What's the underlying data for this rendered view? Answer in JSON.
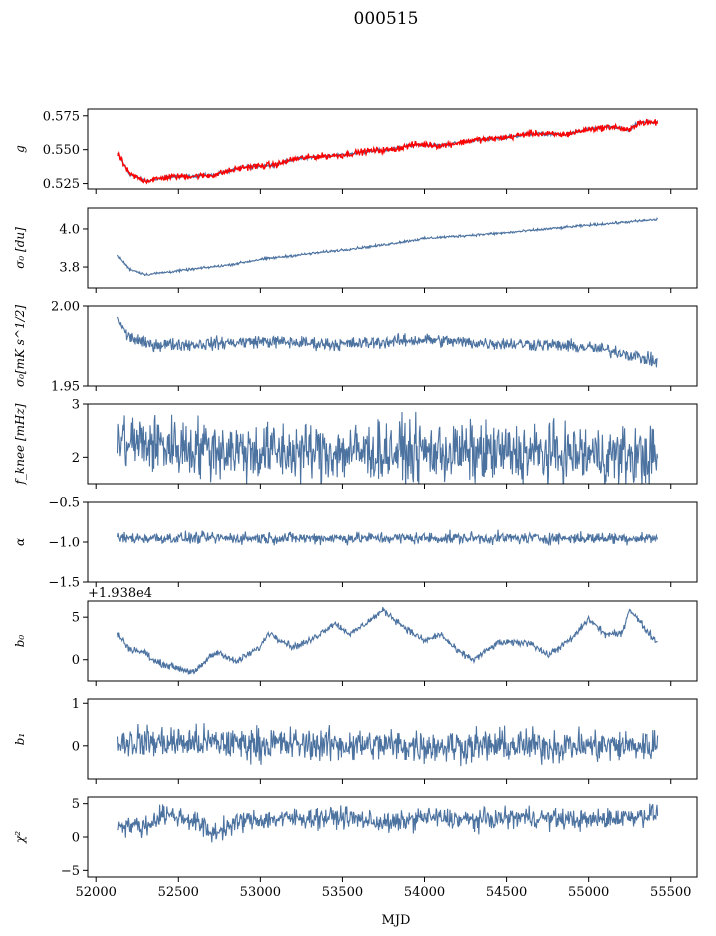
{
  "figure": {
    "title": "000515",
    "xlabel": "MJD",
    "x_ticks": [
      52000,
      52500,
      53000,
      53500,
      54000,
      54500,
      55000,
      55500
    ],
    "xlim": [
      51950,
      55660
    ],
    "colors": {
      "series": "#4c72a0",
      "highlight": "#ff0000",
      "axes": "#000000"
    }
  },
  "chart_data": [
    {
      "type": "line",
      "id": "g",
      "ylabel": "g",
      "ylim": [
        0.521,
        0.58
      ],
      "y_ticks": [
        0.525,
        0.55,
        0.575
      ],
      "y_tick_labels": [
        "0.525",
        "0.550",
        "0.575"
      ],
      "series": [
        {
          "color": "#4c72a0",
          "trend": [
            [
              52130,
              0.547
            ],
            [
              52200,
              0.532
            ],
            [
              52300,
              0.527
            ],
            [
              52450,
              0.53
            ],
            [
              52700,
              0.531
            ],
            [
              52900,
              0.537
            ],
            [
              53100,
              0.539
            ],
            [
              53200,
              0.543
            ],
            [
              53350,
              0.545
            ],
            [
              53500,
              0.546
            ],
            [
              53650,
              0.549
            ],
            [
              53800,
              0.55
            ],
            [
              53950,
              0.554
            ],
            [
              54100,
              0.553
            ],
            [
              54300,
              0.557
            ],
            [
              54500,
              0.559
            ],
            [
              54650,
              0.562
            ],
            [
              54850,
              0.561
            ],
            [
              55000,
              0.565
            ],
            [
              55150,
              0.567
            ],
            [
              55250,
              0.564
            ],
            [
              55300,
              0.57
            ],
            [
              55420,
              0.57
            ]
          ],
          "noise": 0.0008
        },
        {
          "color": "#ff0000",
          "trend": [
            [
              52130,
              0.547
            ],
            [
              52200,
              0.532
            ],
            [
              52300,
              0.527
            ],
            [
              52450,
              0.53
            ],
            [
              52700,
              0.531
            ],
            [
              52900,
              0.537
            ],
            [
              53100,
              0.539
            ],
            [
              53200,
              0.543
            ],
            [
              53350,
              0.545
            ],
            [
              53500,
              0.546
            ],
            [
              53650,
              0.549
            ],
            [
              53800,
              0.55
            ],
            [
              53950,
              0.554
            ],
            [
              54100,
              0.553
            ],
            [
              54300,
              0.557
            ],
            [
              54500,
              0.559
            ],
            [
              54650,
              0.562
            ],
            [
              54850,
              0.561
            ],
            [
              55000,
              0.565
            ],
            [
              55150,
              0.567
            ],
            [
              55250,
              0.564
            ],
            [
              55300,
              0.57
            ],
            [
              55420,
              0.57
            ]
          ],
          "noise": 0.0014
        }
      ]
    },
    {
      "type": "line",
      "id": "sigma0",
      "ylabel": "σ₀ [du]",
      "ylim": [
        3.69,
        4.11
      ],
      "y_ticks": [
        3.8,
        4.0
      ],
      "y_tick_labels": [
        "3.8",
        "4.0"
      ],
      "series": [
        {
          "color": "#4c72a0",
          "trend": [
            [
              52130,
              3.86
            ],
            [
              52200,
              3.79
            ],
            [
              52300,
              3.76
            ],
            [
              52500,
              3.78
            ],
            [
              52800,
              3.81
            ],
            [
              53000,
              3.84
            ],
            [
              53400,
              3.88
            ],
            [
              53700,
              3.91
            ],
            [
              54000,
              3.95
            ],
            [
              54500,
              3.98
            ],
            [
              55000,
              4.02
            ],
            [
              55420,
              4.05
            ]
          ],
          "noise": 0.004
        }
      ]
    },
    {
      "type": "line",
      "id": "sigma0-mk",
      "ylabel": "σ₀[mK s^1/2]",
      "ylim": [
        1.95,
        2.0
      ],
      "y_ticks": [
        1.95,
        2.0
      ],
      "y_tick_labels": [
        "1.95",
        "2.00"
      ],
      "series": [
        {
          "color": "#4c72a0",
          "trend": [
            [
              52130,
              1.993
            ],
            [
              52180,
              1.982
            ],
            [
              52300,
              1.976
            ],
            [
              52600,
              1.976
            ],
            [
              53000,
              1.978
            ],
            [
              53500,
              1.976
            ],
            [
              54000,
              1.979
            ],
            [
              54300,
              1.977
            ],
            [
              54700,
              1.976
            ],
            [
              55000,
              1.974
            ],
            [
              55200,
              1.971
            ],
            [
              55420,
              1.965
            ]
          ],
          "noise": 0.0025
        }
      ]
    },
    {
      "type": "line",
      "id": "fknee",
      "ylabel": "f_knee [mHz]",
      "ylim": [
        1.5,
        3.0
      ],
      "y_ticks": [
        2,
        3
      ],
      "y_tick_labels": [
        "2",
        "3"
      ],
      "series": [
        {
          "color": "#4c72a0",
          "trend": [
            [
              52130,
              2.3
            ],
            [
              52500,
              2.2
            ],
            [
              53000,
              2.1
            ],
            [
              54000,
              2.1
            ],
            [
              55000,
              2.05
            ],
            [
              55420,
              2.0
            ]
          ],
          "noise": 0.35
        }
      ]
    },
    {
      "type": "line",
      "id": "alpha",
      "ylabel": "α",
      "ylim": [
        -1.5,
        -0.5
      ],
      "y_ticks": [
        -1.5,
        -1.0,
        -0.5
      ],
      "y_tick_labels": [
        "−1.5",
        "−1.0",
        "−0.5"
      ],
      "series": [
        {
          "color": "#4c72a0",
          "trend": [
            [
              52130,
              -0.95
            ],
            [
              53000,
              -0.95
            ],
            [
              54000,
              -0.95
            ],
            [
              55420,
              -0.95
            ]
          ],
          "noise": 0.045
        }
      ]
    },
    {
      "type": "line",
      "id": "b0",
      "ylabel": "b₀",
      "offset_text": "+1.938e4",
      "ylim": [
        -2.5,
        6.9
      ],
      "y_ticks": [
        0,
        5
      ],
      "y_tick_labels": [
        "0",
        "5"
      ],
      "series": [
        {
          "color": "#4c72a0",
          "trend": [
            [
              52130,
              3.0
            ],
            [
              52200,
              1.3
            ],
            [
              52300,
              0.8
            ],
            [
              52350,
              -0.2
            ],
            [
              52500,
              -1.0
            ],
            [
              52600,
              -1.5
            ],
            [
              52700,
              0.5
            ],
            [
              52750,
              0.9
            ],
            [
              52850,
              -0.3
            ],
            [
              53000,
              1.5
            ],
            [
              53050,
              3.2
            ],
            [
              53200,
              1.5
            ],
            [
              53300,
              2.2
            ],
            [
              53450,
              4.3
            ],
            [
              53550,
              3.0
            ],
            [
              53750,
              5.8
            ],
            [
              53900,
              3.5
            ],
            [
              54000,
              2.2
            ],
            [
              54100,
              3.0
            ],
            [
              54200,
              1.0
            ],
            [
              54300,
              0.0
            ],
            [
              54450,
              2.0
            ],
            [
              54650,
              2.0
            ],
            [
              54750,
              0.5
            ],
            [
              54900,
              2.5
            ],
            [
              55000,
              4.8
            ],
            [
              55100,
              3.0
            ],
            [
              55200,
              3.0
            ],
            [
              55250,
              6.0
            ],
            [
              55350,
              3.5
            ],
            [
              55420,
              2.0
            ]
          ],
          "noise": 0.25
        }
      ]
    },
    {
      "type": "line",
      "id": "b1",
      "ylabel": "b₁",
      "ylim": [
        -0.78,
        1.1
      ],
      "y_ticks": [
        0,
        1
      ],
      "y_tick_labels": [
        "0",
        "1"
      ],
      "series": [
        {
          "color": "#4c72a0",
          "trend": [
            [
              52130,
              0.1
            ],
            [
              53000,
              0.05
            ],
            [
              54000,
              0.0
            ],
            [
              55000,
              0.0
            ],
            [
              55420,
              0.0
            ]
          ],
          "noise": 0.24
        }
      ]
    },
    {
      "type": "line",
      "id": "chi2",
      "ylabel": "χ²",
      "ylim": [
        -6,
        6
      ],
      "y_ticks": [
        -5,
        0,
        5
      ],
      "y_tick_labels": [
        "−5",
        "0",
        "5"
      ],
      "series": [
        {
          "color": "#4c72a0",
          "trend": [
            [
              52130,
              2.0
            ],
            [
              52300,
              1.5
            ],
            [
              52400,
              3.5
            ],
            [
              52600,
              2.5
            ],
            [
              52700,
              0.5
            ],
            [
              52900,
              2.5
            ],
            [
              53200,
              2.8
            ],
            [
              53500,
              3.0
            ],
            [
              53800,
              2.0
            ],
            [
              54000,
              3.0
            ],
            [
              54300,
              2.5
            ],
            [
              54600,
              3.0
            ],
            [
              55000,
              2.5
            ],
            [
              55420,
              3.5
            ]
          ],
          "noise": 0.95
        }
      ]
    }
  ]
}
